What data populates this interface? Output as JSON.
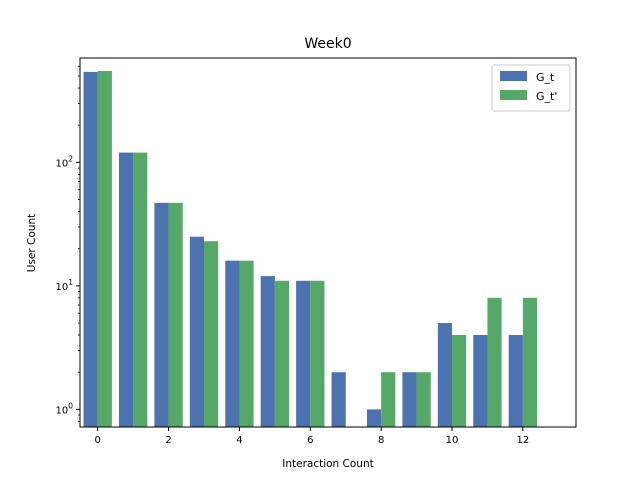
{
  "chart_data": {
    "type": "bar",
    "title": "Week0",
    "xlabel": "Interaction Count",
    "ylabel": "User Count",
    "yscale": "log",
    "xlim": [
      -0.5,
      13.5
    ],
    "ylim": [
      0.72,
      700
    ],
    "xticks": [
      0,
      2,
      4,
      6,
      8,
      10,
      12
    ],
    "yticks": [
      {
        "value": 1,
        "base": "10",
        "exp": "0"
      },
      {
        "value": 10,
        "base": "10",
        "exp": "1"
      },
      {
        "value": 100,
        "base": "10",
        "exp": "2"
      }
    ],
    "grid": false,
    "legend_position": "top-right",
    "x": [
      0,
      1,
      2,
      3,
      4,
      5,
      6,
      7,
      8,
      9,
      10,
      11,
      12
    ],
    "series": [
      {
        "name": "G_t",
        "color": "#4c72b0",
        "values": [
          540,
          120,
          47,
          25,
          16,
          12,
          11,
          2,
          1,
          2,
          5,
          4,
          4
        ]
      },
      {
        "name": "G_t'",
        "color": "#55a868",
        "values": [
          550,
          120,
          47,
          23,
          16,
          11,
          11,
          null,
          2,
          2,
          4,
          8,
          8
        ]
      }
    ]
  }
}
